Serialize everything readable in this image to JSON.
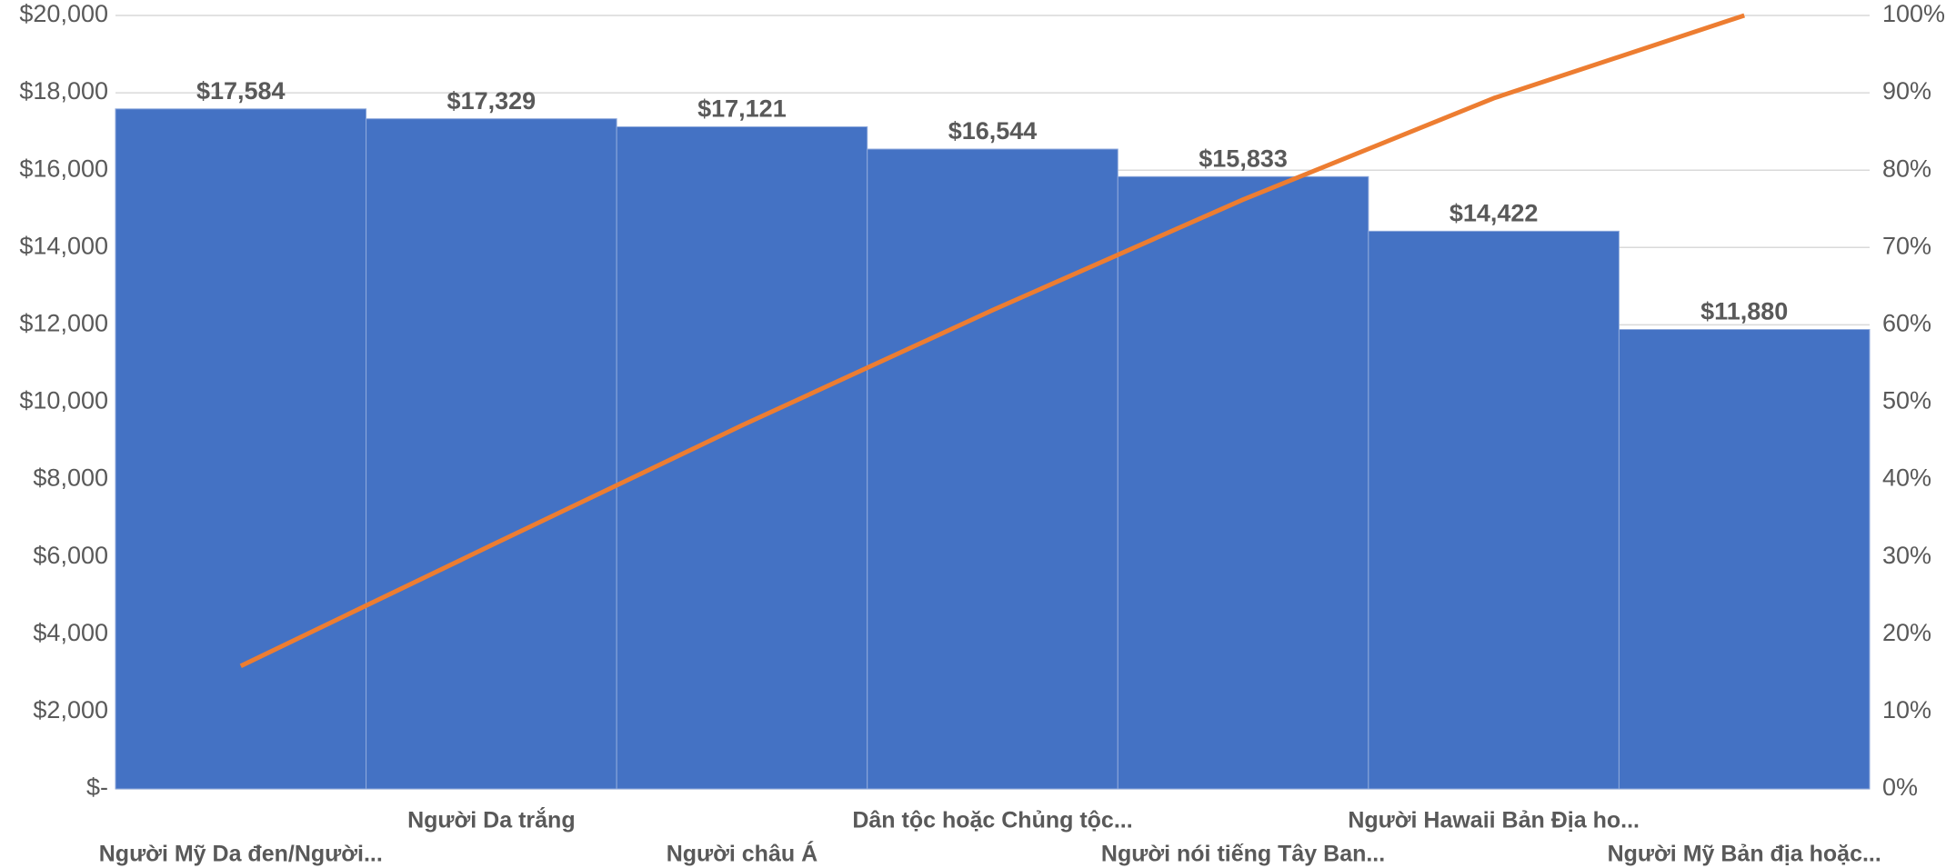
{
  "chart_data": {
    "type": "pareto",
    "categories": [
      "Người Mỹ Da đen/Người...",
      "Người Da trắng",
      "Người châu Á",
      "Dân tộc hoặc Chủng tộc...",
      "Người nói tiếng Tây Ban...",
      "Người Hawaii Bản Địa ho...",
      "Người Mỹ Bản địa hoặc..."
    ],
    "series": [
      {
        "color": "#4472c4",
        "values": [
          17584,
          17329,
          17121,
          16544,
          15833,
          14422,
          11880
        ],
        "value_labels": [
          "$17,584",
          "$17,329",
          "$17,121",
          "$16,544",
          "$15,833",
          "$14,422",
          "$11,880"
        ]
      },
      {
        "color": "#ed7d31",
        "axis": "y2",
        "values": [
          15.9,
          31.5,
          47.0,
          61.9,
          76.2,
          89.3,
          100
        ]
      }
    ],
    "ylim": [
      0,
      20000
    ],
    "yticks": [
      {
        "value": 0,
        "label": "$-"
      },
      {
        "value": 2000,
        "label": "$2,000"
      },
      {
        "value": 4000,
        "label": "$4,000"
      },
      {
        "value": 6000,
        "label": "$6,000"
      },
      {
        "value": 8000,
        "label": "$8,000"
      },
      {
        "value": 10000,
        "label": "$10,000"
      },
      {
        "value": 12000,
        "label": "$12,000"
      },
      {
        "value": 14000,
        "label": "$14,000"
      },
      {
        "value": 16000,
        "label": "$16,000"
      },
      {
        "value": 18000,
        "label": "$18,000"
      },
      {
        "value": 20000,
        "label": "$20,000"
      }
    ],
    "y2lim": [
      0,
      100
    ],
    "y2ticks": [
      {
        "value": 0,
        "label": "0%"
      },
      {
        "value": 10,
        "label": "10%"
      },
      {
        "value": 20,
        "label": "20%"
      },
      {
        "value": 30,
        "label": "30%"
      },
      {
        "value": 40,
        "label": "40%"
      },
      {
        "value": 50,
        "label": "50%"
      },
      {
        "value": 60,
        "label": "60%"
      },
      {
        "value": 70,
        "label": "70%"
      },
      {
        "value": 80,
        "label": "80%"
      },
      {
        "value": 90,
        "label": "90%"
      },
      {
        "value": 100,
        "label": "100%"
      }
    ],
    "grid": true
  }
}
